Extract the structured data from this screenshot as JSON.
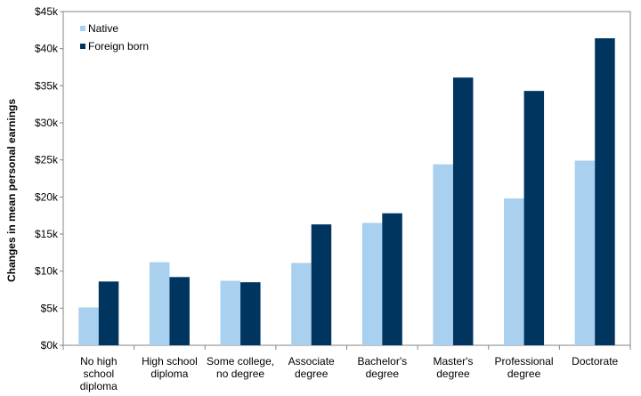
{
  "chart_data": {
    "type": "bar",
    "title": "",
    "xlabel": "",
    "ylabel": "Changes in mean personal earnings",
    "categories": [
      [
        "No high",
        "school",
        "diploma"
      ],
      [
        "High school",
        "diploma"
      ],
      [
        "Some college,",
        "no degree"
      ],
      [
        "Associate",
        "degree"
      ],
      [
        "Bachelor's",
        "degree"
      ],
      [
        "Master's",
        "degree"
      ],
      [
        "Professional",
        "degree"
      ],
      [
        "Doctorate"
      ]
    ],
    "series": [
      {
        "name": "Native",
        "color": "#a9d0ee",
        "values": [
          5100,
          11200,
          8700,
          11100,
          16500,
          24400,
          19800,
          24900
        ]
      },
      {
        "name": "Foreign born",
        "color": "#003560",
        "values": [
          8600,
          9200,
          8500,
          16300,
          17800,
          36100,
          34300,
          41400
        ]
      }
    ],
    "ylim": [
      0,
      45000
    ],
    "yticks": [
      "$0k",
      "$5k",
      "$10k",
      "$15k",
      "$20k",
      "$25k",
      "$30k",
      "$35k",
      "$40k",
      "$45k"
    ],
    "grid": false,
    "legend": "top-left"
  }
}
